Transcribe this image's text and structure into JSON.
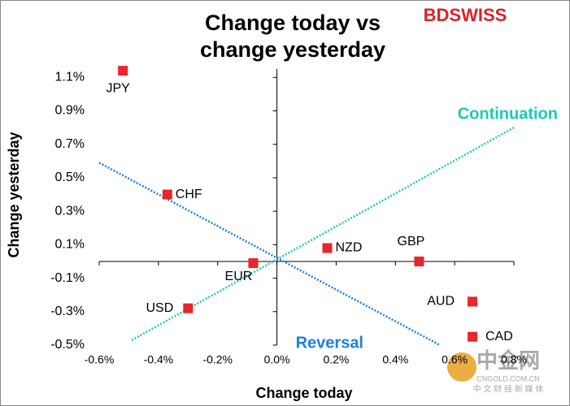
{
  "chart_data": {
    "type": "scatter",
    "title": [
      "Change today vs",
      "change yesterday"
    ],
    "x_label": "Change today",
    "y_label": "Change yesterday",
    "categories": [
      "JPY",
      "CHF",
      "EUR",
      "USD",
      "NZD",
      "GBP",
      "AUD",
      "CAD"
    ],
    "x": [
      -0.52,
      -0.37,
      -0.08,
      -0.3,
      0.17,
      0.48,
      0.66,
      0.66
    ],
    "values": [
      1.14,
      0.4,
      -0.01,
      -0.28,
      0.08,
      0.0,
      -0.24,
      -0.45
    ],
    "color": "#e8262c",
    "lines": [
      {
        "name": "Continuation",
        "color": "#1fc9b4",
        "x": [
          -0.49,
          0.8
        ],
        "values": [
          -0.47,
          0.8
        ]
      },
      {
        "name": "Reversal",
        "color": "#1e7fe0",
        "x": [
          -0.6,
          0.55
        ],
        "values": [
          0.59,
          -0.5
        ]
      }
    ],
    "xlim": [
      -0.6,
      0.8
    ],
    "xticks": [
      {
        "value": -0.6,
        "label": "-0.6%"
      },
      {
        "value": -0.4,
        "label": "-0.4%"
      },
      {
        "value": -0.2,
        "label": "-0.2%"
      },
      {
        "value": 0,
        "label": "0.0%"
      },
      {
        "value": 0.2,
        "label": "0.2%"
      },
      {
        "value": 0.4,
        "label": "0.4%"
      },
      {
        "value": 0.6,
        "label": "0.6%"
      },
      {
        "value": 0.8,
        "label": "0.8%"
      }
    ],
    "ylim": [
      -0.5,
      1.15
    ],
    "yticks": [
      {
        "value": -0.5,
        "label": "-0.5%"
      },
      {
        "value": -0.3,
        "label": "-0.3%"
      },
      {
        "value": -0.1,
        "label": "-0.1%"
      },
      {
        "value": 0.1,
        "label": "0.1%"
      },
      {
        "value": 0.3,
        "label": "0.3%"
      },
      {
        "value": 0.5,
        "label": "0.5%"
      },
      {
        "value": 0.7,
        "label": "0.7%"
      },
      {
        "value": 0.9,
        "label": "0.9%"
      },
      {
        "value": 1.1,
        "label": "1.1%"
      }
    ],
    "brand": "BDSWISS",
    "watermark": [
      "中金网",
      "CNGOLD.COM.CN",
      "中 文 财 经 新 媒 体"
    ]
  }
}
